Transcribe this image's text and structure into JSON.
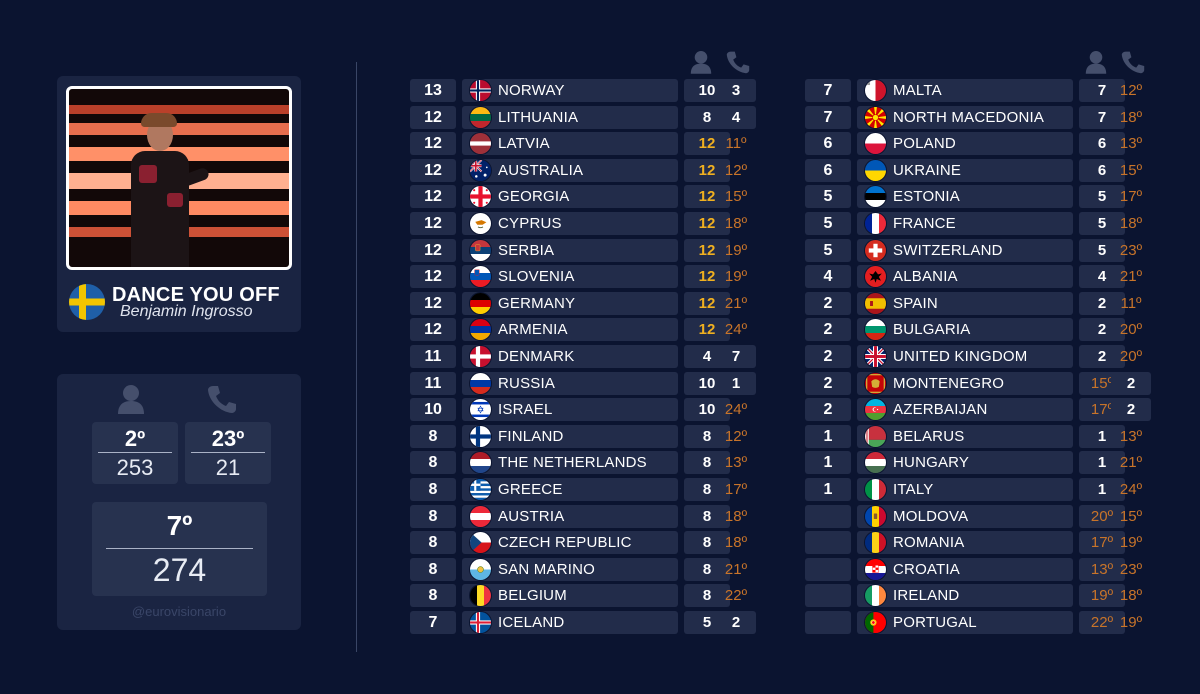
{
  "song": {
    "title": "DANCE YOU OFF",
    "artist": "Benjamin Ingrosso",
    "flag_icon": "sweden-flag-icon"
  },
  "summary": {
    "jury": {
      "place": "2º",
      "points": "253",
      "icon": "person-icon"
    },
    "televote": {
      "place": "23º",
      "points": "21",
      "icon": "phone-icon"
    },
    "total": {
      "place": "7º",
      "points": "274"
    },
    "handle": "@eurovisionario"
  },
  "colors": {
    "background": "#0b1430",
    "panel": "#1a2442",
    "cell": "#222c4a",
    "points_max": "#f0b020",
    "rank": "#c8742a"
  },
  "tables": {
    "left": [
      {
        "total": "13",
        "country": "NORWAY",
        "flag": "no",
        "jury": "10",
        "jury_style": "white",
        "tele": "3",
        "tele_style": "white"
      },
      {
        "total": "12",
        "country": "LITHUANIA",
        "flag": "lt",
        "jury": "8",
        "jury_style": "white",
        "tele": "4",
        "tele_style": "white"
      },
      {
        "total": "12",
        "country": "LATVIA",
        "flag": "lv",
        "jury": "12",
        "jury_style": "gold",
        "tele": "11º",
        "tele_style": "orange"
      },
      {
        "total": "12",
        "country": "AUSTRALIA",
        "flag": "au",
        "jury": "12",
        "jury_style": "gold",
        "tele": "12º",
        "tele_style": "orange"
      },
      {
        "total": "12",
        "country": "GEORGIA",
        "flag": "ge",
        "jury": "12",
        "jury_style": "gold",
        "tele": "15º",
        "tele_style": "orange"
      },
      {
        "total": "12",
        "country": "CYPRUS",
        "flag": "cy",
        "jury": "12",
        "jury_style": "gold",
        "tele": "18º",
        "tele_style": "orange"
      },
      {
        "total": "12",
        "country": "SERBIA",
        "flag": "rs",
        "jury": "12",
        "jury_style": "gold",
        "tele": "19º",
        "tele_style": "orange"
      },
      {
        "total": "12",
        "country": "SLOVENIA",
        "flag": "si",
        "jury": "12",
        "jury_style": "gold",
        "tele": "19º",
        "tele_style": "orange"
      },
      {
        "total": "12",
        "country": "GERMANY",
        "flag": "de",
        "jury": "12",
        "jury_style": "gold",
        "tele": "21º",
        "tele_style": "orange"
      },
      {
        "total": "12",
        "country": "ARMENIA",
        "flag": "am",
        "jury": "12",
        "jury_style": "gold",
        "tele": "24º",
        "tele_style": "orange"
      },
      {
        "total": "11",
        "country": "DENMARK",
        "flag": "dk",
        "jury": "4",
        "jury_style": "white",
        "tele": "7",
        "tele_style": "white"
      },
      {
        "total": "11",
        "country": "RUSSIA",
        "flag": "ru",
        "jury": "10",
        "jury_style": "white",
        "tele": "1",
        "tele_style": "white"
      },
      {
        "total": "10",
        "country": "ISRAEL",
        "flag": "il",
        "jury": "10",
        "jury_style": "white",
        "tele": "24º",
        "tele_style": "orange"
      },
      {
        "total": "8",
        "country": "FINLAND",
        "flag": "fi",
        "jury": "8",
        "jury_style": "white",
        "tele": "12º",
        "tele_style": "orange"
      },
      {
        "total": "8",
        "country": "THE NETHERLANDS",
        "flag": "nl",
        "jury": "8",
        "jury_style": "white",
        "tele": "13º",
        "tele_style": "orange"
      },
      {
        "total": "8",
        "country": "GREECE",
        "flag": "gr",
        "jury": "8",
        "jury_style": "white",
        "tele": "17º",
        "tele_style": "orange"
      },
      {
        "total": "8",
        "country": "AUSTRIA",
        "flag": "at",
        "jury": "8",
        "jury_style": "white",
        "tele": "18º",
        "tele_style": "orange"
      },
      {
        "total": "8",
        "country": "CZECH REPUBLIC",
        "flag": "cz",
        "jury": "8",
        "jury_style": "white",
        "tele": "18º",
        "tele_style": "orange"
      },
      {
        "total": "8",
        "country": "SAN MARINO",
        "flag": "sm",
        "jury": "8",
        "jury_style": "white",
        "tele": "21º",
        "tele_style": "orange"
      },
      {
        "total": "8",
        "country": "BELGIUM",
        "flag": "be",
        "jury": "8",
        "jury_style": "white",
        "tele": "22º",
        "tele_style": "orange"
      },
      {
        "total": "7",
        "country": "ICELAND",
        "flag": "is",
        "jury": "5",
        "jury_style": "white",
        "tele": "2",
        "tele_style": "white"
      }
    ],
    "right": [
      {
        "total": "7",
        "country": "MALTA",
        "flag": "mt",
        "jury": "7",
        "jury_style": "white",
        "tele": "12º",
        "tele_style": "orange"
      },
      {
        "total": "7",
        "country": "NORTH MACEDONIA",
        "flag": "mk",
        "jury": "7",
        "jury_style": "white",
        "tele": "18º",
        "tele_style": "orange"
      },
      {
        "total": "6",
        "country": "POLAND",
        "flag": "pl",
        "jury": "6",
        "jury_style": "white",
        "tele": "13º",
        "tele_style": "orange"
      },
      {
        "total": "6",
        "country": "UKRAINE",
        "flag": "ua",
        "jury": "6",
        "jury_style": "white",
        "tele": "15º",
        "tele_style": "orange"
      },
      {
        "total": "5",
        "country": "ESTONIA",
        "flag": "ee",
        "jury": "5",
        "jury_style": "white",
        "tele": "17º",
        "tele_style": "orange"
      },
      {
        "total": "5",
        "country": "FRANCE",
        "flag": "fr",
        "jury": "5",
        "jury_style": "white",
        "tele": "18º",
        "tele_style": "orange"
      },
      {
        "total": "5",
        "country": "SWITZERLAND",
        "flag": "ch",
        "jury": "5",
        "jury_style": "white",
        "tele": "23º",
        "tele_style": "orange"
      },
      {
        "total": "4",
        "country": "ALBANIA",
        "flag": "al",
        "jury": "4",
        "jury_style": "white",
        "tele": "21º",
        "tele_style": "orange"
      },
      {
        "total": "2",
        "country": "SPAIN",
        "flag": "es",
        "jury": "2",
        "jury_style": "white",
        "tele": "11º",
        "tele_style": "orange"
      },
      {
        "total": "2",
        "country": "BULGARIA",
        "flag": "bg",
        "jury": "2",
        "jury_style": "white",
        "tele": "20º",
        "tele_style": "orange"
      },
      {
        "total": "2",
        "country": "UNITED KINGDOM",
        "flag": "gb",
        "jury": "2",
        "jury_style": "white",
        "tele": "20º",
        "tele_style": "orange"
      },
      {
        "total": "2",
        "country": "MONTENEGRO",
        "flag": "me",
        "jury": "15º",
        "jury_style": "orange",
        "tele": "2",
        "tele_style": "white"
      },
      {
        "total": "2",
        "country": "AZERBAIJAN",
        "flag": "az",
        "jury": "17º",
        "jury_style": "orange",
        "tele": "2",
        "tele_style": "white"
      },
      {
        "total": "1",
        "country": "BELARUS",
        "flag": "by",
        "jury": "1",
        "jury_style": "white",
        "tele": "13º",
        "tele_style": "orange"
      },
      {
        "total": "1",
        "country": "HUNGARY",
        "flag": "hu",
        "jury": "1",
        "jury_style": "white",
        "tele": "21º",
        "tele_style": "orange"
      },
      {
        "total": "1",
        "country": "ITALY",
        "flag": "it",
        "jury": "1",
        "jury_style": "white",
        "tele": "24º",
        "tele_style": "orange"
      },
      {
        "total": "",
        "country": "MOLDOVA",
        "flag": "md",
        "jury": "20º",
        "jury_style": "orange",
        "tele": "15º",
        "tele_style": "orange"
      },
      {
        "total": "",
        "country": "ROMANIA",
        "flag": "ro",
        "jury": "17º",
        "jury_style": "orange",
        "tele": "19º",
        "tele_style": "orange"
      },
      {
        "total": "",
        "country": "CROATIA",
        "flag": "hr",
        "jury": "13º",
        "jury_style": "orange",
        "tele": "23º",
        "tele_style": "orange"
      },
      {
        "total": "",
        "country": "IRELAND",
        "flag": "ie",
        "jury": "19º",
        "jury_style": "orange",
        "tele": "18º",
        "tele_style": "orange"
      },
      {
        "total": "",
        "country": "PORTUGAL",
        "flag": "pt",
        "jury": "22º",
        "jury_style": "orange",
        "tele": "19º",
        "tele_style": "orange"
      }
    ]
  }
}
